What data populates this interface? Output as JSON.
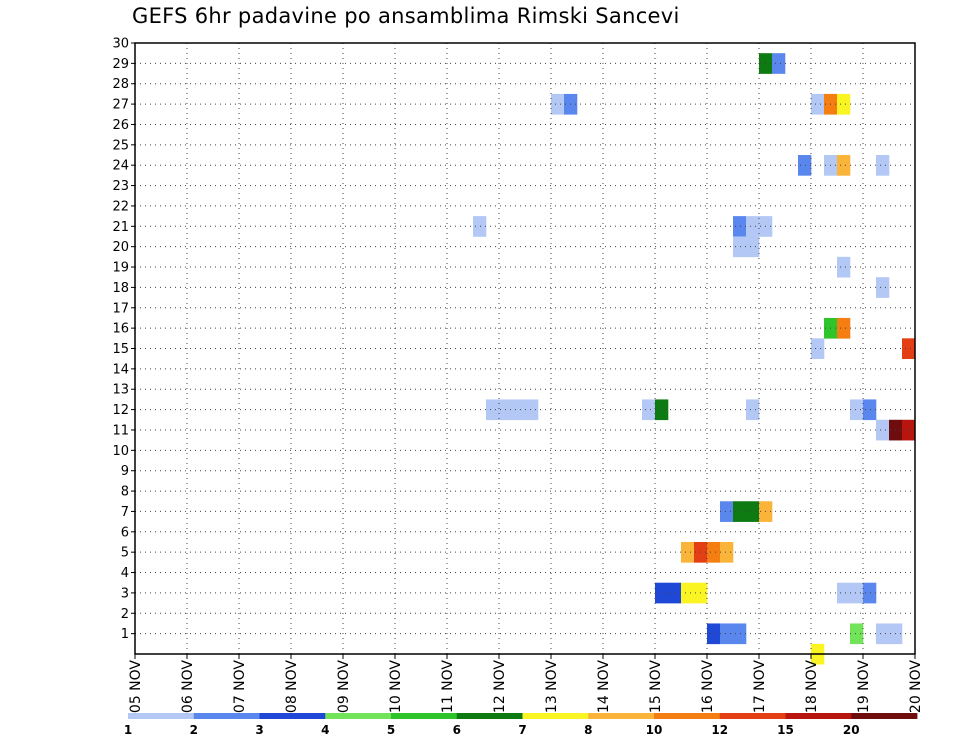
{
  "chart_data": {
    "type": "heatmap",
    "title": "GEFS 6hr padavine po ansamblima Rimski Sancevi",
    "xlabel": "",
    "ylabel": "",
    "x_ticks": [
      "05 NOV",
      "06 NOV",
      "07 NOV",
      "08 NOV",
      "09 NOV",
      "10 NOV",
      "11 NOV",
      "12 NOV",
      "13 NOV",
      "14 NOV",
      "15 NOV",
      "16 NOV",
      "17 NOV",
      "18 NOV",
      "19 NOV",
      "20 NOV"
    ],
    "y_ticks": [
      "1",
      "2",
      "3",
      "4",
      "5",
      "6",
      "7",
      "8",
      "9",
      "10",
      "11",
      "12",
      "13",
      "14",
      "15",
      "16",
      "17",
      "18",
      "19",
      "20",
      "21",
      "22",
      "23",
      "24",
      "25",
      "26",
      "27",
      "28",
      "29",
      "30"
    ],
    "x_range_steps": [
      0,
      60
    ],
    "steps_per_day": 4,
    "y_range": [
      0,
      30
    ],
    "grid": true,
    "color_levels": [
      {
        "label": "1",
        "color": "#b4c8f5"
      },
      {
        "label": "2",
        "color": "#5a87ee"
      },
      {
        "label": "3",
        "color": "#1f48d6"
      },
      {
        "label": "4",
        "color": "#72e45a"
      },
      {
        "label": "5",
        "color": "#2ec42a"
      },
      {
        "label": "6",
        "color": "#0d7a12"
      },
      {
        "label": "7",
        "color": "#faf422"
      },
      {
        "label": "8",
        "color": "#fbb43a"
      },
      {
        "label": "10",
        "color": "#f57e12"
      },
      {
        "label": "12",
        "color": "#e33e14"
      },
      {
        "label": "15",
        "color": "#b8150f"
      },
      {
        "label": "20",
        "color": "#6e0c0e"
      }
    ],
    "colorbar_labels": [
      "1",
      "2",
      "3",
      "4",
      "5",
      "6",
      "7",
      "8",
      "10",
      "12",
      "15",
      "20"
    ],
    "cells": [
      {
        "member": 29,
        "step": 48,
        "level": 5
      },
      {
        "member": 29,
        "step": 49,
        "level": 1
      },
      {
        "member": 27,
        "step": 32,
        "level": 0
      },
      {
        "member": 27,
        "step": 33,
        "level": 1
      },
      {
        "member": 27,
        "step": 52,
        "level": 0
      },
      {
        "member": 27,
        "step": 53,
        "level": 8
      },
      {
        "member": 27,
        "step": 54,
        "level": 6
      },
      {
        "member": 24,
        "step": 51,
        "level": 1
      },
      {
        "member": 24,
        "step": 53,
        "level": 0
      },
      {
        "member": 24,
        "step": 54,
        "level": 7
      },
      {
        "member": 24,
        "step": 57,
        "level": 0
      },
      {
        "member": 21,
        "step": 26,
        "level": 0
      },
      {
        "member": 21,
        "step": 46,
        "level": 1
      },
      {
        "member": 21,
        "step": 47,
        "level": 0
      },
      {
        "member": 21,
        "step": 48,
        "level": 0
      },
      {
        "member": 20,
        "step": 46,
        "level": 0
      },
      {
        "member": 20,
        "step": 47,
        "level": 0
      },
      {
        "member": 19,
        "step": 54,
        "level": 0
      },
      {
        "member": 18,
        "step": 57,
        "level": 0
      },
      {
        "member": 16,
        "step": 53,
        "level": 4
      },
      {
        "member": 16,
        "step": 54,
        "level": 8
      },
      {
        "member": 15,
        "step": 52,
        "level": 0
      },
      {
        "member": 15,
        "step": 59,
        "level": 9
      },
      {
        "member": 12,
        "step": 27,
        "level": 0
      },
      {
        "member": 12,
        "step": 28,
        "level": 0
      },
      {
        "member": 12,
        "step": 29,
        "level": 0
      },
      {
        "member": 12,
        "step": 30,
        "level": 0
      },
      {
        "member": 12,
        "step": 39,
        "level": 0
      },
      {
        "member": 12,
        "step": 40,
        "level": 5
      },
      {
        "member": 12,
        "step": 47,
        "level": 0
      },
      {
        "member": 12,
        "step": 55,
        "level": 0
      },
      {
        "member": 12,
        "step": 56,
        "level": 1
      },
      {
        "member": 11,
        "step": 57,
        "level": 0
      },
      {
        "member": 11,
        "step": 58,
        "level": 11
      },
      {
        "member": 11,
        "step": 59,
        "level": 10
      },
      {
        "member": 7,
        "step": 45,
        "level": 1
      },
      {
        "member": 7,
        "step": 46,
        "level": 5
      },
      {
        "member": 7,
        "step": 47,
        "level": 5
      },
      {
        "member": 7,
        "step": 48,
        "level": 7
      },
      {
        "member": 5,
        "step": 42,
        "level": 7
      },
      {
        "member": 5,
        "step": 43,
        "level": 9
      },
      {
        "member": 5,
        "step": 44,
        "level": 8
      },
      {
        "member": 5,
        "step": 45,
        "level": 7
      },
      {
        "member": 3,
        "step": 40,
        "level": 2
      },
      {
        "member": 3,
        "step": 41,
        "level": 2
      },
      {
        "member": 3,
        "step": 42,
        "level": 6
      },
      {
        "member": 3,
        "step": 43,
        "level": 6
      },
      {
        "member": 3,
        "step": 54,
        "level": 0
      },
      {
        "member": 3,
        "step": 55,
        "level": 0
      },
      {
        "member": 3,
        "step": 56,
        "level": 1
      },
      {
        "member": 1,
        "step": 44,
        "level": 2
      },
      {
        "member": 1,
        "step": 45,
        "level": 1
      },
      {
        "member": 1,
        "step": 46,
        "level": 1
      },
      {
        "member": 1,
        "step": 55,
        "level": 3
      },
      {
        "member": 1,
        "step": 57,
        "level": 0
      },
      {
        "member": 1,
        "step": 58,
        "level": 0
      },
      {
        "member": 0,
        "step": 52,
        "level": 6
      }
    ]
  }
}
